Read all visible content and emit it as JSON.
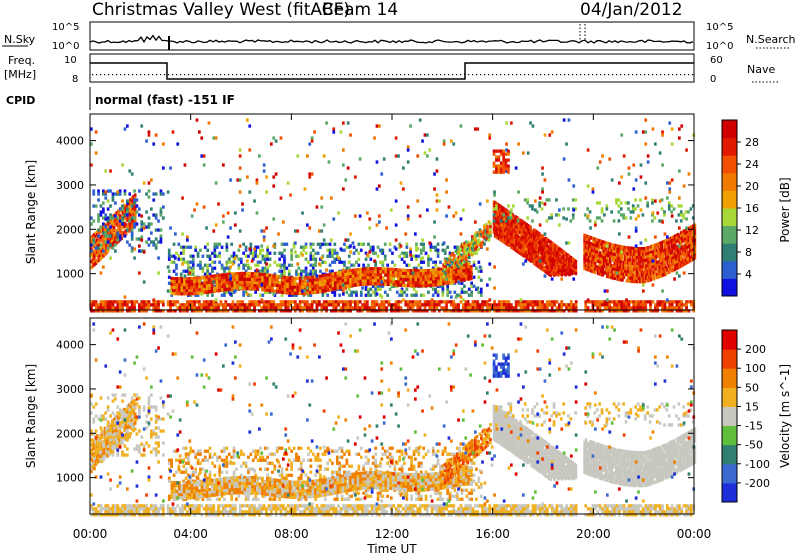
{
  "header": {
    "title": "Christmas Valley West (fitACF)",
    "beam": "Beam 14",
    "date": "04/Jan/2012"
  },
  "summary_panels": {
    "nsky_label": "N.Sky",
    "nsky_ticks": [
      "10^5",
      "10^0"
    ],
    "nsearch_label": "N.Search",
    "nsearch_ticks": [
      "10^5",
      "10^0"
    ],
    "freq_label_1": "Freq.",
    "freq_label_2": "[MHz]",
    "freq_ticks": [
      "10",
      "8"
    ],
    "nave_label": "Nave",
    "nave_ticks": [
      "60",
      "0"
    ],
    "cpid_label": "CPID",
    "cpid_text": "normal (fast)  -151 IF"
  },
  "chart_data": [
    {
      "type": "heatmap",
      "name": "power",
      "ylabel": "Slant Range [km]",
      "xlabel": "Time UT",
      "ylim": [
        180,
        4600
      ],
      "yticks": [
        1000,
        2000,
        3000,
        4000
      ],
      "colorbar": {
        "label": "Power [dB]",
        "ticks": [
          "4",
          "8",
          "12",
          "16",
          "20",
          "24",
          "28"
        ],
        "colors": [
          "#1010e0",
          "#2c5fd0",
          "#2f7f74",
          "#5aa866",
          "#a8d838",
          "#f0a000",
          "#f07a00",
          "#f05000",
          "#e01a00",
          "#d00000"
        ]
      }
    },
    {
      "type": "heatmap",
      "name": "velocity",
      "ylabel": "Slant Range [km]",
      "xlabel": "Time UT",
      "ylim": [
        180,
        4600
      ],
      "yticks": [
        1000,
        2000,
        3000,
        4000
      ],
      "colorbar": {
        "label": "Velocity [m s^-1]",
        "ticks": [
          "200",
          "100",
          "50",
          "15",
          "-15",
          "-50",
          "-100",
          "-200"
        ],
        "colors": [
          "#1c2ed8",
          "#3a6ad0",
          "#2f8070",
          "#5fbf3a",
          "#c8c8c0",
          "#f0b020",
          "#f08000",
          "#f04000",
          "#e00000"
        ]
      }
    }
  ],
  "xaxis": {
    "label": "Time UT",
    "ticks": [
      "00:00",
      "04:00",
      "08:00",
      "12:00",
      "16:00",
      "20:00",
      "00:00"
    ]
  }
}
